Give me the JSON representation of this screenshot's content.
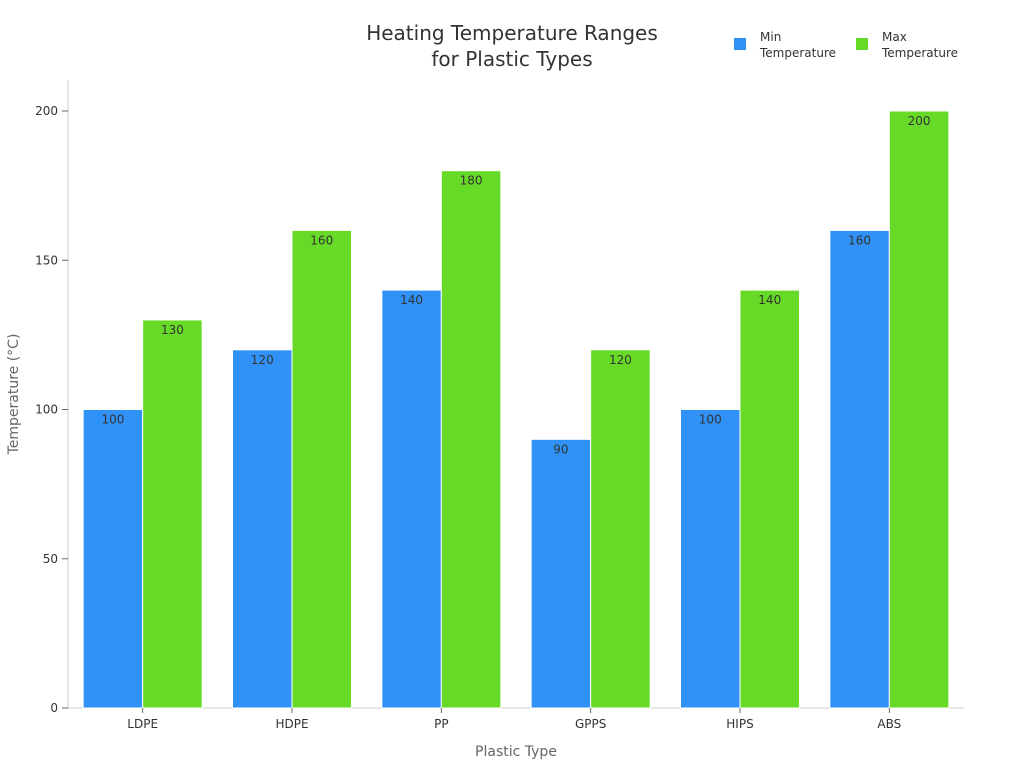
{
  "chart_data": {
    "type": "bar",
    "title_lines": [
      "Heating Temperature Ranges",
      "for Plastic Types"
    ],
    "xlabel": "Plastic Type",
    "ylabel": "Temperature (°C)",
    "categories": [
      "LDPE",
      "HDPE",
      "PP",
      "GPPS",
      "HIPS",
      "ABS"
    ],
    "series": [
      {
        "name_lines": [
          "Min",
          "Temperature"
        ],
        "color": "#3091f7",
        "values": [
          100,
          120,
          140,
          90,
          100,
          160
        ]
      },
      {
        "name_lines": [
          "Max",
          "Temperature"
        ],
        "color": "#67da27",
        "values": [
          130,
          160,
          180,
          120,
          140,
          200
        ]
      }
    ],
    "ylim": [
      0,
      210
    ],
    "yticks": [
      0,
      50,
      100,
      150,
      200
    ],
    "grid": false,
    "legend_position": "top-right",
    "data_labels": true
  }
}
